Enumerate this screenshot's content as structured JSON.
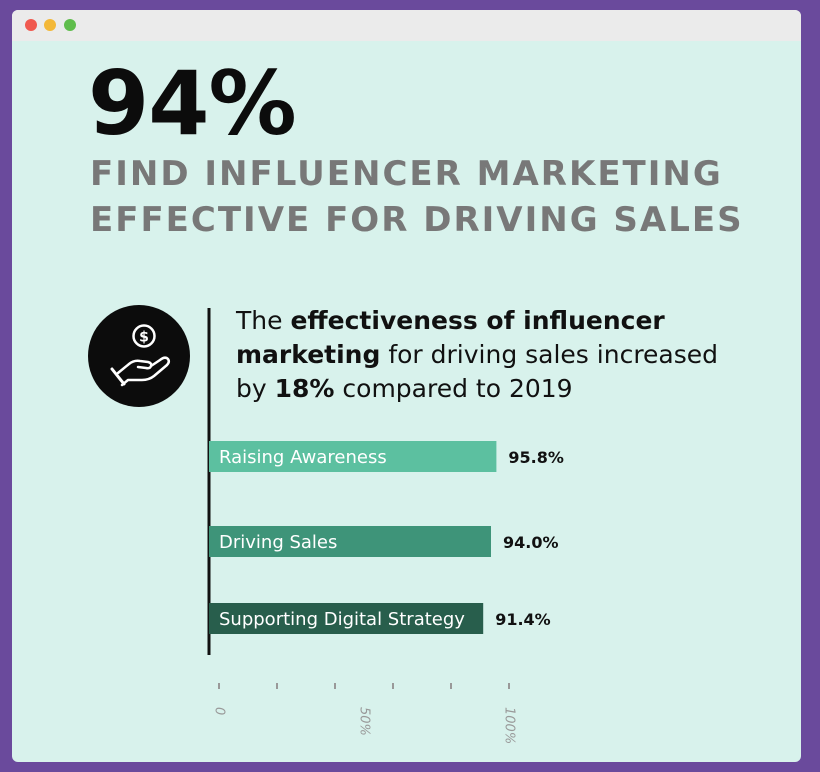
{
  "window": {
    "controls": [
      "close",
      "minimize",
      "maximize"
    ]
  },
  "headline": "94%",
  "subhead_line1": "FIND INFLUENCER MARKETING",
  "subhead_line2": "EFFECTIVE FOR DRIVING SALES",
  "icon": "hand-dollar-icon",
  "description": {
    "p1": "The ",
    "b1": "effectiveness of influencer marketing",
    "p2": " for driving sales increased by ",
    "b2": "18%",
    "p3": " compared to 2019"
  },
  "colors": {
    "background": "#d8f2ec",
    "frame": "#6a4a9c",
    "bar1": "#5cc0a0",
    "bar2": "#3e9479",
    "bar3": "#285e4c"
  },
  "chart_data": {
    "type": "bar",
    "orientation": "horizontal",
    "categories": [
      "Raising Awareness",
      "Driving Sales",
      "Supporting Digital Strategy"
    ],
    "values": [
      95.8,
      94.0,
      91.4
    ],
    "value_labels": [
      "95.8%",
      "94.0%",
      "91.4%"
    ],
    "xlim": [
      0,
      100
    ],
    "x_tick_labels": [
      "0",
      "50%",
      "100%"
    ],
    "grid": false,
    "legend": "none"
  }
}
